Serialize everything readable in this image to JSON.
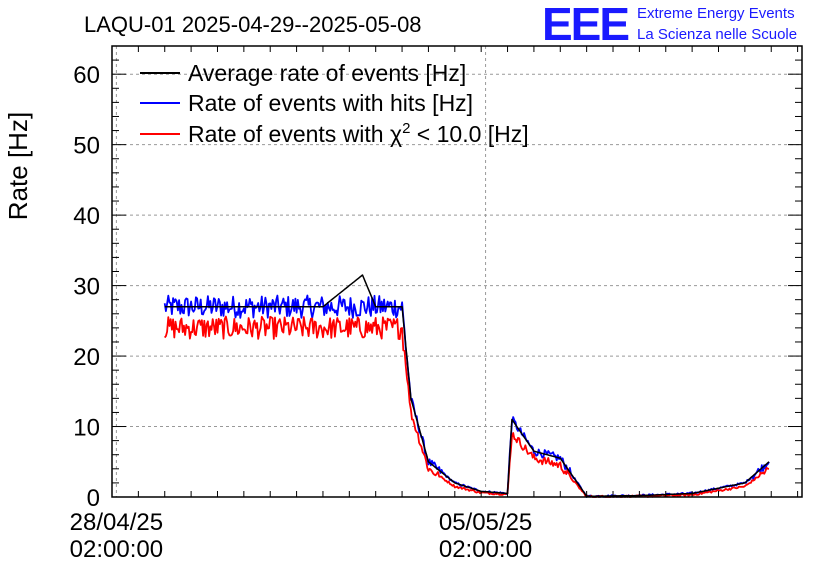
{
  "chart_data": {
    "type": "line",
    "title": "LAQU-01 2025-04-29--2025-05-08",
    "ylabel": "Rate [Hz]",
    "xlabel": "",
    "ylim": [
      0,
      64
    ],
    "y_ticks": [
      0,
      10,
      20,
      30,
      40,
      50,
      60
    ],
    "x_ticks": [
      {
        "date": "2025-04-28 02:00:00",
        "line1": "28/04/25",
        "line2": "02:00:00"
      },
      {
        "date": "2025-05-05 02:00:00",
        "line1": "05/05/25",
        "line2": "02:00:00"
      }
    ],
    "xlim": [
      "2025-04-28 00:00:00",
      "2025-05-11 02:00:00"
    ],
    "grid": true,
    "legend_position": "top-left",
    "series": [
      {
        "name": "Average rate of events [Hz]",
        "color": "#000000",
        "x": [
          "2025-04-29 00:00",
          "2025-04-30 00:00",
          "2025-05-01 00:00",
          "2025-05-02 00:00",
          "2025-05-02 18:00",
          "2025-05-03 00:00",
          "2025-05-03 12:00",
          "2025-05-03 16:00",
          "2025-05-04 00:00",
          "2025-05-04 12:00",
          "2025-05-05 00:00",
          "2025-05-05 12:00",
          "2025-05-05 14:00",
          "2025-05-06 00:00",
          "2025-05-06 12:00",
          "2025-05-07 00:00",
          "2025-05-08 00:00",
          "2025-05-09 00:00",
          "2025-05-10 00:00",
          "2025-05-10 11:00"
        ],
        "values": [
          27,
          27,
          27,
          27,
          31.5,
          27,
          27,
          14,
          5,
          2,
          0.8,
          0.5,
          11,
          6.5,
          5.5,
          0.1,
          0.2,
          0.5,
          2,
          5
        ]
      },
      {
        "name": "Rate of events with hits [Hz]",
        "color": "#0000ff",
        "x": [
          "2025-04-29 00:00",
          "2025-04-30 00:00",
          "2025-05-01 00:00",
          "2025-05-02 00:00",
          "2025-05-03 00:00",
          "2025-05-03 12:00",
          "2025-05-03 16:00",
          "2025-05-04 00:00",
          "2025-05-04 12:00",
          "2025-05-05 00:00",
          "2025-05-05 12:00",
          "2025-05-05 14:00",
          "2025-05-06 00:00",
          "2025-05-06 12:00",
          "2025-05-07 00:00",
          "2025-05-08 00:00",
          "2025-05-09 00:00",
          "2025-05-10 00:00",
          "2025-05-10 11:00"
        ],
        "values": [
          27,
          27,
          27,
          27,
          27,
          27,
          14,
          5,
          2,
          0.8,
          0.5,
          11,
          6.5,
          5.5,
          0.1,
          0.2,
          0.5,
          2,
          5
        ]
      },
      {
        "name": "Rate of events with χ² < 10.0 [Hz]",
        "color": "#ff0000",
        "x": [
          "2025-04-29 00:00",
          "2025-04-30 00:00",
          "2025-05-01 00:00",
          "2025-05-02 00:00",
          "2025-05-03 00:00",
          "2025-05-03 12:00",
          "2025-05-03 16:00",
          "2025-05-04 00:00",
          "2025-05-04 12:00",
          "2025-05-05 00:00",
          "2025-05-05 12:00",
          "2025-05-05 14:00",
          "2025-05-06 00:00",
          "2025-05-06 12:00",
          "2025-05-07 00:00",
          "2025-05-08 00:00",
          "2025-05-09 00:00",
          "2025-05-10 00:00",
          "2025-05-10 11:00"
        ],
        "values": [
          24,
          24,
          24,
          24,
          24,
          24,
          12,
          4,
          1.5,
          0.6,
          0.4,
          9,
          5.5,
          4.5,
          0.05,
          0.1,
          0.3,
          1.5,
          4
        ]
      }
    ]
  },
  "legend_items": [
    {
      "text": "Average rate of events [Hz]",
      "color": "#000000"
    },
    {
      "text": "Rate of events with hits [Hz]",
      "color": "#0000ff"
    },
    {
      "text_prefix": "Rate of events with ",
      "symbol": "χ",
      "superscript": "2",
      "text_suffix": " < 10.0 [Hz]",
      "color": "#ff0000"
    }
  ],
  "logo": {
    "letters": "EEE",
    "line1": "Extreme Energy Events",
    "line2": "La Scienza nelle Scuole",
    "color": "#1a1aff"
  }
}
